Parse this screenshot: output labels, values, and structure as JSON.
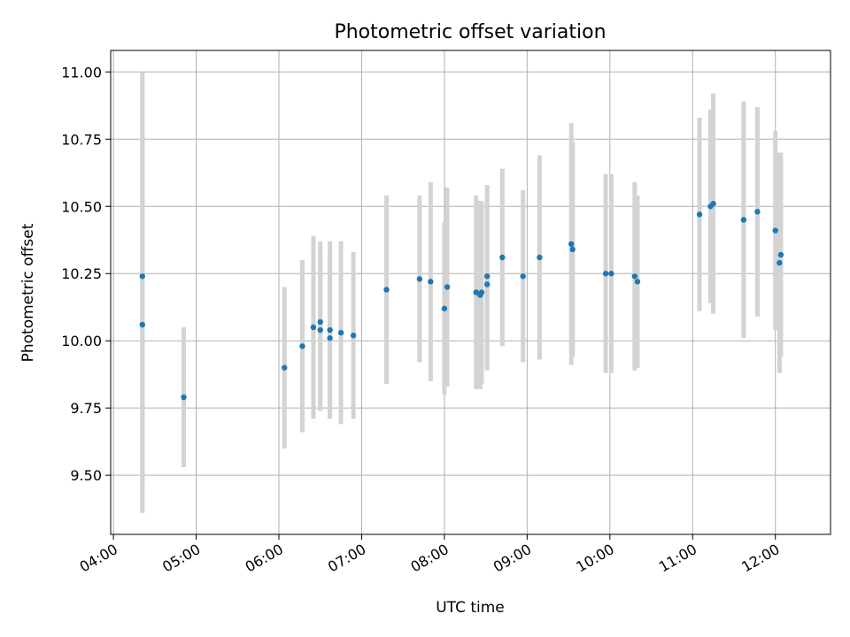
{
  "chart_data": {
    "type": "scatter",
    "title": "Photometric offset variation",
    "xlabel": "UTC time",
    "ylabel": "Photometric offset",
    "xlim": [
      "03:58",
      "12:40"
    ],
    "ylim": [
      9.28,
      11.08
    ],
    "x_ticks": [
      "04:00",
      "05:00",
      "06:00",
      "07:00",
      "08:00",
      "09:00",
      "10:00",
      "11:00",
      "12:00"
    ],
    "y_ticks": [
      "9.50",
      "9.75",
      "10.00",
      "10.25",
      "10.50",
      "10.75",
      "11.00"
    ],
    "grid": true,
    "point_color": "#1f77b4",
    "errorbar_color": "#d3d3d3",
    "series": [
      {
        "points": [
          {
            "x": "04:21",
            "y": 10.24,
            "err": 0.76
          },
          {
            "x": "04:21",
            "y": 10.06,
            "err": 0.7
          },
          {
            "x": "04:51",
            "y": 9.79,
            "err": 0.26
          },
          {
            "x": "06:04",
            "y": 9.9,
            "err": 0.3
          },
          {
            "x": "06:17",
            "y": 9.98,
            "err": 0.32
          },
          {
            "x": "06:25",
            "y": 10.05,
            "err": 0.34
          },
          {
            "x": "06:30",
            "y": 10.07,
            "err": 0.3
          },
          {
            "x": "06:30",
            "y": 10.04,
            "err": 0.3
          },
          {
            "x": "06:37",
            "y": 10.04,
            "err": 0.33
          },
          {
            "x": "06:37",
            "y": 10.01,
            "err": 0.3
          },
          {
            "x": "06:45",
            "y": 10.03,
            "err": 0.34
          },
          {
            "x": "06:54",
            "y": 10.02,
            "err": 0.31
          },
          {
            "x": "07:18",
            "y": 10.19,
            "err": 0.35
          },
          {
            "x": "07:42",
            "y": 10.23,
            "err": 0.31
          },
          {
            "x": "07:50",
            "y": 10.22,
            "err": 0.37
          },
          {
            "x": "08:00",
            "y": 10.12,
            "err": 0.32
          },
          {
            "x": "08:02",
            "y": 10.2,
            "err": 0.37
          },
          {
            "x": "08:23",
            "y": 10.18,
            "err": 0.36
          },
          {
            "x": "08:26",
            "y": 10.17,
            "err": 0.35
          },
          {
            "x": "08:27",
            "y": 10.18,
            "err": 0.34
          },
          {
            "x": "08:31",
            "y": 10.24,
            "err": 0.34
          },
          {
            "x": "08:31",
            "y": 10.21,
            "err": 0.32
          },
          {
            "x": "08:42",
            "y": 10.31,
            "err": 0.33
          },
          {
            "x": "08:57",
            "y": 10.24,
            "err": 0.32
          },
          {
            "x": "09:09",
            "y": 10.31,
            "err": 0.38
          },
          {
            "x": "09:32",
            "y": 10.36,
            "err": 0.45
          },
          {
            "x": "09:33",
            "y": 10.34,
            "err": 0.4
          },
          {
            "x": "09:57",
            "y": 10.25,
            "err": 0.37
          },
          {
            "x": "10:01",
            "y": 10.25,
            "err": 0.37
          },
          {
            "x": "10:18",
            "y": 10.24,
            "err": 0.35
          },
          {
            "x": "10:20",
            "y": 10.22,
            "err": 0.32
          },
          {
            "x": "11:05",
            "y": 10.47,
            "err": 0.36
          },
          {
            "x": "11:13",
            "y": 10.5,
            "err": 0.36
          },
          {
            "x": "11:15",
            "y": 10.51,
            "err": 0.41
          },
          {
            "x": "11:37",
            "y": 10.45,
            "err": 0.44
          },
          {
            "x": "11:47",
            "y": 10.48,
            "err": 0.39
          },
          {
            "x": "12:00",
            "y": 10.41,
            "err": 0.37
          },
          {
            "x": "12:04",
            "y": 10.32,
            "err": 0.38
          },
          {
            "x": "12:03",
            "y": 10.29,
            "err": 0.41
          }
        ]
      }
    ]
  }
}
